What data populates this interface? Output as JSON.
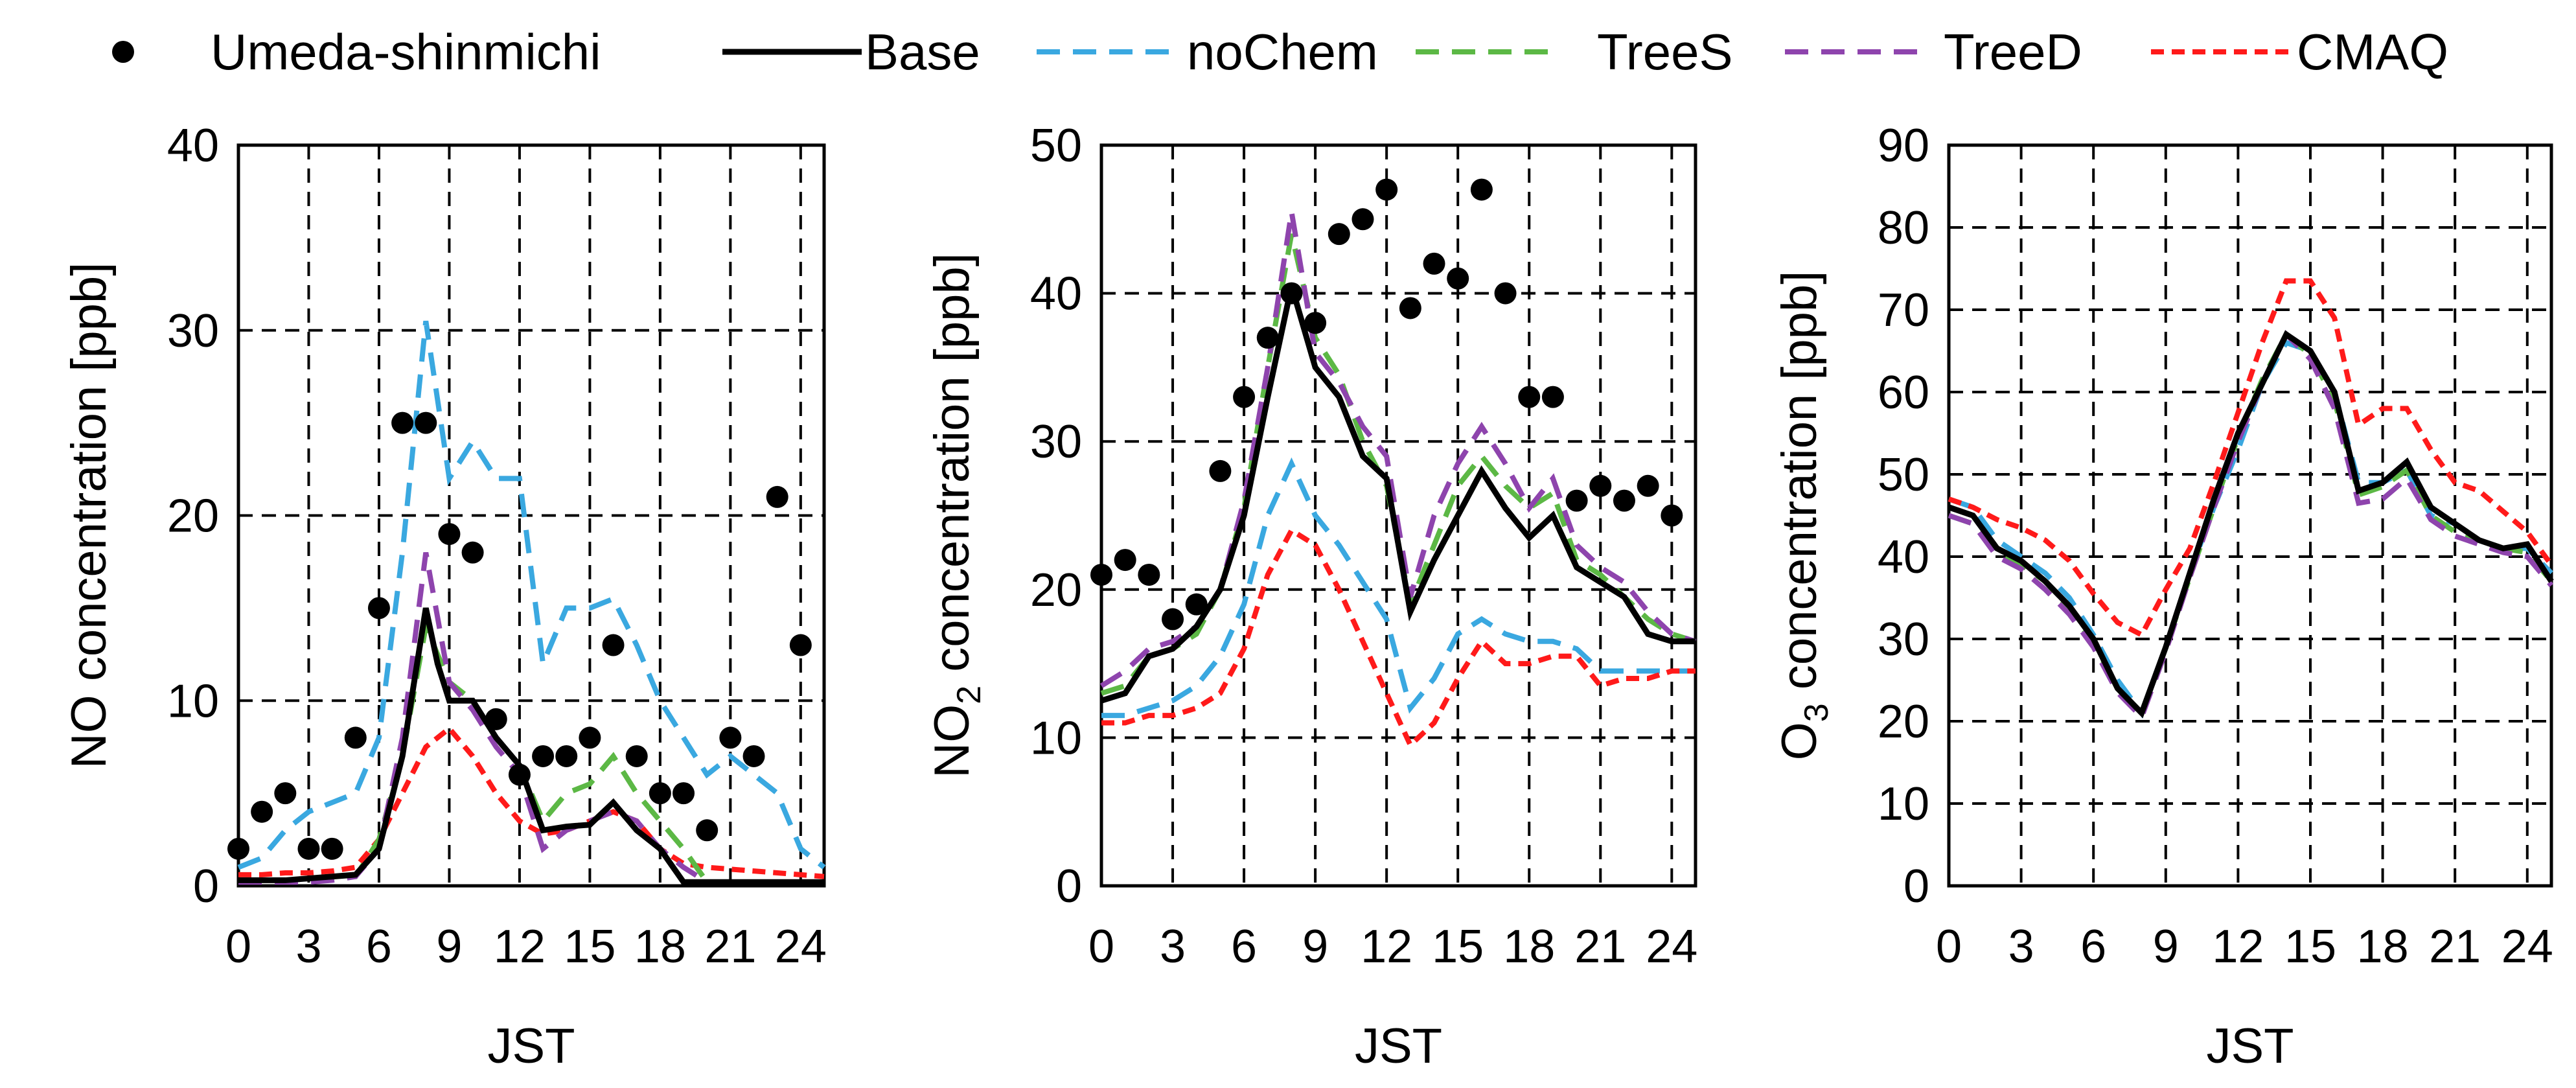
{
  "legend": [
    {
      "key": "obs",
      "label": "Umeda-shinmichi",
      "color": "#000000",
      "style": "marker"
    },
    {
      "key": "base",
      "label": "Base",
      "color": "#000000",
      "style": "solid"
    },
    {
      "key": "nochem",
      "label": "noChem",
      "color": "#3aa8e0",
      "style": "dash"
    },
    {
      "key": "trees",
      "label": "TreeS",
      "color": "#5cb845",
      "style": "dash"
    },
    {
      "key": "treed",
      "label": "TreeD",
      "color": "#8e44ad",
      "style": "dash"
    },
    {
      "key": "cmaq",
      "label": "CMAQ",
      "color": "#ff1a1a",
      "style": "dot"
    }
  ],
  "chart_data": [
    {
      "type": "line",
      "id": "no",
      "xlabel": "JST",
      "ylabel": "NO concentration [ppb]",
      "ylabel_parts": [
        [
          "NO concentration [ppb]",
          false
        ]
      ],
      "xlim": [
        0,
        25
      ],
      "ylim": [
        0,
        40
      ],
      "xticks": [
        0,
        3,
        6,
        9,
        12,
        15,
        18,
        21,
        24
      ],
      "yticks": [
        0,
        10,
        20,
        30,
        40
      ],
      "obs": {
        "x": [
          0,
          1,
          2,
          3,
          4,
          5,
          6,
          7,
          8,
          9,
          10,
          11,
          12,
          13,
          14,
          15,
          16,
          17,
          18,
          19,
          20,
          21,
          22,
          23,
          24,
          25
        ],
        "y": [
          2,
          4,
          5,
          2,
          2,
          8,
          15,
          25,
          25,
          19,
          18,
          9,
          6,
          7,
          7,
          8,
          13,
          7,
          5,
          5,
          3,
          8,
          7,
          21,
          13,
          null
        ]
      },
      "series": [
        {
          "key": "base",
          "x": [
            0,
            1,
            2,
            3,
            4,
            5,
            6,
            7,
            8,
            8.5,
            9,
            10,
            11,
            12,
            13,
            14,
            15,
            16,
            17,
            18,
            19,
            20,
            21,
            22,
            23,
            24,
            25
          ],
          "y": [
            0.3,
            0.3,
            0.3,
            0.4,
            0.5,
            0.6,
            2,
            7,
            15,
            12,
            10,
            10,
            8,
            6.5,
            3,
            3.2,
            3.3,
            4.5,
            3,
            2,
            0.2,
            0.2,
            0.2,
            0.2,
            0.2,
            0.2,
            0.2
          ]
        },
        {
          "key": "nochem",
          "x": [
            0,
            1,
            2,
            3,
            4,
            5,
            6,
            7,
            8,
            9,
            10,
            11,
            12,
            13,
            14,
            15,
            16,
            17,
            18,
            19,
            20,
            21,
            22,
            23,
            24,
            25
          ],
          "y": [
            1,
            1.5,
            3,
            4,
            4.5,
            5,
            8,
            18,
            30.5,
            22,
            24,
            22,
            22,
            12,
            15,
            15,
            15.5,
            13,
            10,
            8,
            6,
            7,
            6,
            5,
            2,
            1
          ]
        },
        {
          "key": "trees",
          "x": [
            0,
            1,
            2,
            3,
            4,
            5,
            6,
            7,
            8,
            9,
            10,
            11,
            12,
            13,
            14,
            15,
            16,
            17,
            18,
            19,
            20,
            21,
            22,
            23,
            24,
            25
          ],
          "y": [
            0.3,
            0.3,
            0.3,
            0.3,
            0.4,
            0.5,
            2.5,
            7,
            14,
            11,
            10,
            8,
            6.5,
            3.5,
            5,
            5.5,
            7,
            5,
            3.5,
            2,
            0.2,
            0.2,
            0.2,
            0.2,
            0.2,
            0.2
          ]
        },
        {
          "key": "treed",
          "x": [
            0,
            1,
            2,
            3,
            4,
            5,
            6,
            7,
            8,
            9,
            10,
            11,
            12,
            13,
            14,
            15,
            16,
            17,
            18,
            19,
            20,
            21,
            22,
            23,
            24,
            25
          ],
          "y": [
            0.2,
            0.2,
            0.2,
            0.2,
            0.3,
            0.5,
            2,
            8,
            18,
            11,
            9.5,
            7.5,
            6,
            2,
            3,
            3.5,
            4,
            3.5,
            2,
            1,
            0.2,
            0.2,
            0.2,
            0.2,
            0.2,
            0.2
          ]
        },
        {
          "key": "cmaq",
          "x": [
            0,
            1,
            2,
            3,
            4,
            5,
            6,
            7,
            8,
            9,
            10,
            11,
            12,
            13,
            14,
            15,
            16,
            17,
            18,
            19,
            20,
            21,
            22,
            23,
            24,
            25
          ],
          "y": [
            0.6,
            0.6,
            0.7,
            0.7,
            0.8,
            1,
            2.5,
            5,
            7.5,
            8.5,
            7,
            5,
            3.5,
            2.8,
            3,
            3.5,
            4,
            3.5,
            2,
            1.2,
            1,
            0.9,
            0.8,
            0.7,
            0.6,
            0.5
          ]
        }
      ]
    },
    {
      "type": "line",
      "id": "no2",
      "xlabel": "JST",
      "ylabel": "NO2 concentration [ppb]",
      "ylabel_parts": [
        [
          "NO",
          false
        ],
        [
          "2",
          true
        ],
        [
          " concentration [ppb]",
          false
        ]
      ],
      "xlim": [
        0,
        25
      ],
      "ylim": [
        0,
        50
      ],
      "xticks": [
        0,
        3,
        6,
        9,
        12,
        15,
        18,
        21,
        24
      ],
      "yticks": [
        0,
        10,
        20,
        30,
        40,
        50
      ],
      "obs": {
        "x": [
          0,
          1,
          2,
          3,
          4,
          5,
          6,
          7,
          8,
          9,
          10,
          11,
          12,
          13,
          14,
          15,
          16,
          17,
          18,
          19,
          20,
          21,
          22,
          23,
          24,
          25
        ],
        "y": [
          21,
          22,
          21,
          18,
          19,
          28,
          33,
          37,
          40,
          38,
          44,
          45,
          47,
          39,
          42,
          41,
          47,
          40,
          33,
          33,
          26,
          27,
          26,
          27,
          25,
          null
        ]
      },
      "series": [
        {
          "key": "base",
          "x": [
            0,
            1,
            2,
            3,
            4,
            5,
            6,
            7,
            8,
            9,
            10,
            11,
            12,
            13,
            14,
            15,
            16,
            17,
            18,
            19,
            20,
            21,
            22,
            23,
            24,
            25
          ],
          "y": [
            12.5,
            13,
            15.5,
            16,
            17.5,
            20,
            25,
            33,
            40.5,
            35,
            33,
            29,
            27.5,
            18.5,
            22,
            25,
            28,
            25.5,
            23.5,
            25,
            21.5,
            20.5,
            19.5,
            17,
            16.5,
            16.5
          ]
        },
        {
          "key": "nochem",
          "x": [
            0,
            1,
            2,
            3,
            4,
            5,
            6,
            7,
            8,
            9,
            10,
            11,
            12,
            13,
            14,
            15,
            16,
            17,
            18,
            19,
            20,
            21,
            22,
            23,
            24,
            25
          ],
          "y": [
            11.5,
            11.5,
            12,
            12.5,
            13.5,
            15.5,
            19,
            25,
            28.5,
            25,
            23,
            20.5,
            18,
            12,
            14,
            17,
            18,
            17,
            16.5,
            16.5,
            16,
            14.5,
            14.5,
            14.5,
            14.5,
            14.5
          ]
        },
        {
          "key": "trees",
          "x": [
            0,
            1,
            2,
            3,
            4,
            5,
            6,
            7,
            8,
            9,
            10,
            11,
            12,
            13,
            14,
            15,
            16,
            17,
            18,
            19,
            20,
            21,
            22,
            23,
            24,
            25
          ],
          "y": [
            13,
            13.5,
            15.5,
            16,
            17,
            20,
            25.5,
            35,
            44,
            37,
            34.5,
            30,
            27,
            19,
            23,
            27,
            29,
            27,
            25.5,
            26.5,
            22,
            21,
            19.5,
            18,
            17,
            16.5
          ]
        },
        {
          "key": "treed",
          "x": [
            0,
            1,
            2,
            3,
            4,
            5,
            6,
            7,
            8,
            9,
            10,
            11,
            12,
            13,
            14,
            15,
            16,
            17,
            18,
            19,
            20,
            21,
            22,
            23,
            24,
            25
          ],
          "y": [
            13.5,
            14.5,
            16,
            16.5,
            17.5,
            20,
            26,
            35,
            45.5,
            36,
            34,
            31,
            29,
            19.5,
            25,
            28.5,
            31,
            28.5,
            25.5,
            27.5,
            23,
            21.5,
            20.5,
            18.5,
            17,
            16.5
          ]
        },
        {
          "key": "cmaq",
          "x": [
            0,
            1,
            2,
            3,
            4,
            5,
            6,
            7,
            8,
            9,
            10,
            11,
            12,
            13,
            14,
            15,
            16,
            17,
            18,
            19,
            20,
            21,
            22,
            23,
            24,
            25
          ],
          "y": [
            11,
            11,
            11.5,
            11.5,
            12,
            13,
            16,
            21,
            24,
            23,
            20,
            16.5,
            13,
            9.5,
            11,
            14,
            16.5,
            15,
            15,
            15.5,
            15.5,
            13.5,
            14,
            14,
            14.5,
            14.5
          ]
        }
      ]
    },
    {
      "type": "line",
      "id": "o3",
      "xlabel": "JST",
      "ylabel": "O3 concentration [ppb]",
      "ylabel_parts": [
        [
          "O",
          false
        ],
        [
          "3",
          true
        ],
        [
          " concentration [ppb]",
          false
        ]
      ],
      "xlim": [
        0,
        25
      ],
      "ylim": [
        0,
        90
      ],
      "xticks": [
        0,
        3,
        6,
        9,
        12,
        15,
        18,
        21,
        24
      ],
      "yticks": [
        0,
        10,
        20,
        30,
        40,
        50,
        60,
        70,
        80,
        90
      ],
      "obs": {
        "x": [],
        "y": []
      },
      "series": [
        {
          "key": "base",
          "x": [
            0,
            1,
            2,
            3,
            4,
            5,
            6,
            7,
            8,
            9,
            10,
            11,
            12,
            13,
            14,
            15,
            16,
            17,
            18,
            19,
            20,
            21,
            22,
            23,
            24,
            25
          ],
          "y": [
            46,
            45,
            41,
            39.5,
            37,
            34,
            30,
            24,
            21,
            29,
            38,
            47,
            55,
            61,
            67,
            65,
            60,
            48,
            49,
            51.5,
            46,
            44,
            42,
            41,
            41.5,
            37
          ]
        },
        {
          "key": "nochem",
          "x": [
            0,
            1,
            2,
            3,
            4,
            5,
            6,
            7,
            8,
            9,
            10,
            11,
            12,
            13,
            14,
            15,
            16,
            17,
            18,
            19,
            20,
            21,
            22,
            23,
            24,
            25
          ],
          "y": [
            47,
            46,
            42,
            40,
            38,
            35,
            30.5,
            25,
            21,
            29,
            38,
            46,
            53,
            61,
            66,
            65,
            60,
            49,
            49,
            50.5,
            45,
            44,
            42,
            41,
            41,
            38
          ]
        },
        {
          "key": "trees",
          "x": [
            0,
            1,
            2,
            3,
            4,
            5,
            6,
            7,
            8,
            9,
            10,
            11,
            12,
            13,
            14,
            15,
            16,
            17,
            18,
            19,
            20,
            21,
            22,
            23,
            24,
            25
          ],
          "y": [
            45,
            44,
            40.5,
            39,
            37,
            33.5,
            29.5,
            24,
            21,
            29,
            37.5,
            46,
            54.5,
            61.5,
            67,
            64.5,
            59,
            47.5,
            48.5,
            50.5,
            45,
            43,
            42,
            41,
            40.5,
            37
          ]
        },
        {
          "key": "treed",
          "x": [
            0,
            1,
            2,
            3,
            4,
            5,
            6,
            7,
            8,
            9,
            10,
            11,
            12,
            13,
            14,
            15,
            16,
            17,
            18,
            19,
            20,
            21,
            22,
            23,
            24,
            25
          ],
          "y": [
            45,
            44,
            40,
            38.5,
            36,
            33,
            29,
            23.5,
            20.5,
            28.5,
            37.5,
            46,
            54,
            61,
            67,
            64,
            58,
            46.5,
            47,
            49.5,
            44.5,
            42.5,
            41.5,
            40.5,
            40,
            36.5
          ]
        },
        {
          "key": "cmaq",
          "x": [
            0,
            1,
            2,
            3,
            4,
            5,
            6,
            7,
            8,
            9,
            10,
            11,
            12,
            13,
            14,
            15,
            16,
            17,
            18,
            19,
            20,
            21,
            22,
            23,
            24,
            25
          ],
          "y": [
            47,
            46,
            44.5,
            43.5,
            42,
            39.5,
            35.5,
            32,
            30.5,
            36,
            41,
            49,
            57.5,
            66,
            73.5,
            73.5,
            69,
            56,
            58,
            58,
            53,
            49,
            48,
            45.5,
            43,
            39
          ]
        }
      ]
    }
  ]
}
